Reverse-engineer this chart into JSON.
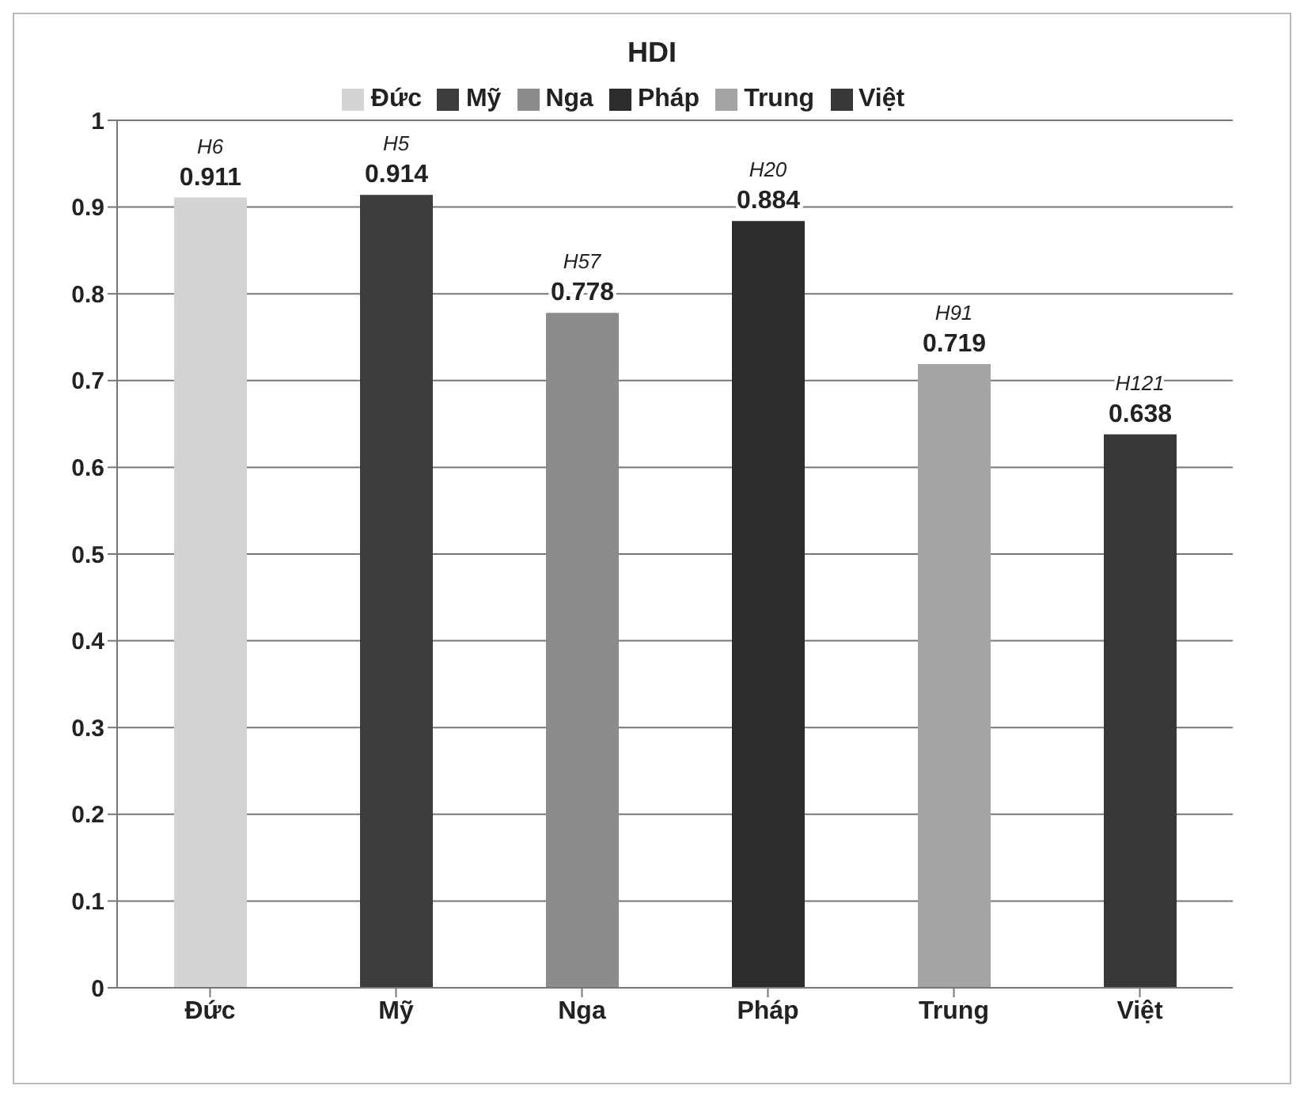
{
  "chart_data": {
    "type": "bar",
    "title": "HDI",
    "categories": [
      "Đức",
      "Mỹ",
      "Nga",
      "Pháp",
      "Trung",
      "Việt"
    ],
    "stacked": true,
    "series": [
      {
        "name": "Đức",
        "color": "#d4d4d4",
        "values": [
          0.911,
          null,
          null,
          null,
          null,
          null
        ]
      },
      {
        "name": "Mỹ",
        "color": "#3c3c3c",
        "values": [
          null,
          0.914,
          null,
          null,
          null,
          null
        ]
      },
      {
        "name": "Nga",
        "color": "#8c8c8c",
        "values": [
          null,
          null,
          0.778,
          null,
          null,
          null
        ]
      },
      {
        "name": "Pháp",
        "color": "#2c2c2c",
        "values": [
          null,
          null,
          null,
          0.884,
          null,
          null
        ]
      },
      {
        "name": "Trung",
        "color": "#a4a4a4",
        "values": [
          null,
          null,
          null,
          null,
          0.719,
          null
        ]
      },
      {
        "name": "Việt",
        "color": "#383838",
        "values": [
          null,
          null,
          null,
          null,
          null,
          0.638
        ]
      }
    ],
    "ylim": [
      0,
      1
    ],
    "yticks": [
      0,
      0.1,
      0.2,
      0.3,
      0.4,
      0.5,
      0.6,
      0.7,
      0.8,
      0.9,
      1
    ],
    "grid": "y",
    "legend": "top",
    "data_labels": true,
    "annotations": [
      {
        "text": "H6",
        "x": "Đức",
        "y": 0.911
      },
      {
        "text": "H5",
        "x": "Mỹ",
        "y": 0.914
      },
      {
        "text": "H57",
        "x": "Nga",
        "y": 0.778
      },
      {
        "text": "H20",
        "x": "Pháp",
        "y": 0.884
      },
      {
        "text": "H91",
        "x": "Trung",
        "y": 0.719
      },
      {
        "text": "H121",
        "x": "Việt",
        "y": 0.638
      }
    ]
  }
}
